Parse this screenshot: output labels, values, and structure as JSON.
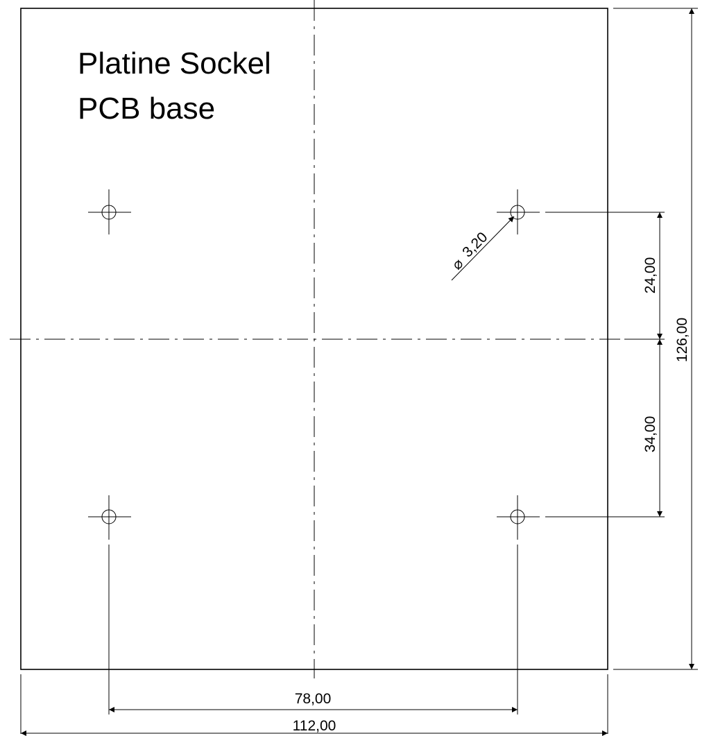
{
  "title": {
    "line1": "Platine Sockel",
    "line2": "PCB base"
  },
  "dimensions": {
    "overall_width": "112,00",
    "overall_height": "126,00",
    "hole_spacing_x": "78,00",
    "upper_offset": "24,00",
    "lower_offset": "34,00",
    "hole_diameter": "3,20",
    "diameter_symbol": "⌀"
  },
  "holes": [
    {
      "name": "top-left"
    },
    {
      "name": "top-right"
    },
    {
      "name": "bottom-left"
    },
    {
      "name": "bottom-right"
    }
  ]
}
